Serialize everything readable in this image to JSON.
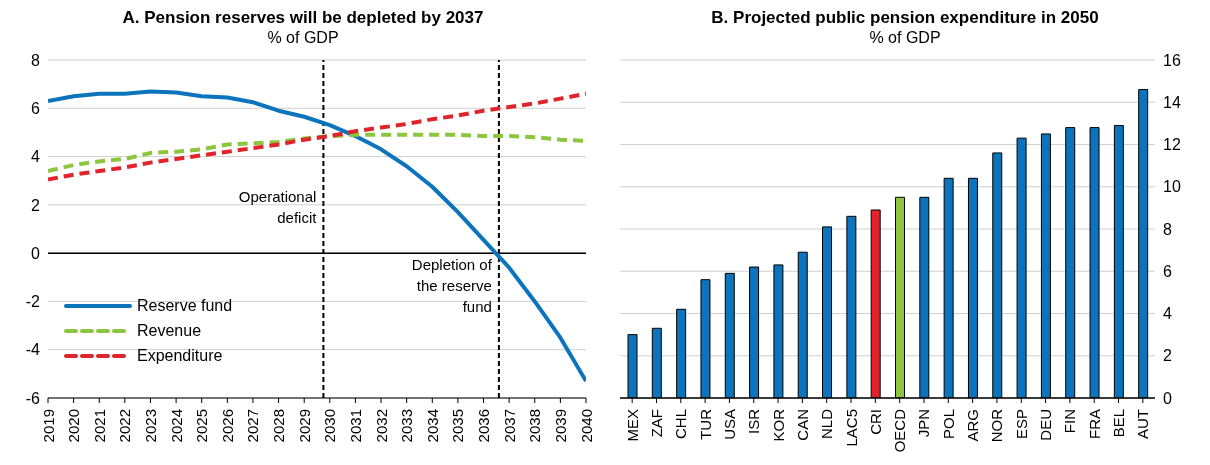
{
  "chart_data": [
    {
      "type": "line",
      "title": "A. Pension reserves will be depleted by 2037",
      "subtitle": "% of GDP",
      "x": [
        2019,
        2020,
        2021,
        2022,
        2023,
        2024,
        2025,
        2026,
        2027,
        2028,
        2029,
        2030,
        2031,
        2032,
        2033,
        2034,
        2035,
        2036,
        2037,
        2038,
        2039,
        2040
      ],
      "series": [
        {
          "name": "Reserve fund",
          "color": "#0b74bd",
          "line_style": "solid",
          "values": [
            6.3,
            6.5,
            6.6,
            6.6,
            6.7,
            6.65,
            6.5,
            6.45,
            6.25,
            5.9,
            5.65,
            5.3,
            4.85,
            4.3,
            3.6,
            2.75,
            1.7,
            0.55,
            -0.6,
            -2.0,
            -3.5,
            -5.3
          ]
        },
        {
          "name": "Revenue",
          "color": "#8cc63f",
          "line_style": "dashed",
          "values": [
            3.4,
            3.65,
            3.8,
            3.9,
            4.15,
            4.2,
            4.3,
            4.5,
            4.55,
            4.6,
            4.75,
            4.85,
            4.9,
            4.9,
            4.9,
            4.9,
            4.9,
            4.85,
            4.85,
            4.8,
            4.7,
            4.65
          ]
        },
        {
          "name": "Expenditure",
          "color": "#e0242b",
          "line_style": "dashed",
          "values": [
            3.05,
            3.25,
            3.4,
            3.55,
            3.75,
            3.9,
            4.05,
            4.2,
            4.35,
            4.5,
            4.7,
            4.85,
            5.05,
            5.2,
            5.35,
            5.55,
            5.7,
            5.9,
            6.05,
            6.2,
            6.4,
            6.6
          ]
        }
      ],
      "xlim": [
        2019,
        2040
      ],
      "xticks": [
        2019,
        2020,
        2021,
        2022,
        2023,
        2024,
        2025,
        2026,
        2027,
        2028,
        2029,
        2030,
        2031,
        2032,
        2033,
        2034,
        2035,
        2036,
        2037,
        2038,
        2039,
        2040
      ],
      "ylim": [
        -6,
        8
      ],
      "yticks": [
        -6,
        -4,
        -2,
        0,
        2,
        4,
        6,
        8
      ],
      "ref_lines": [
        {
          "axis": "x",
          "value": 2029.75,
          "label": "Operational deficit",
          "color": "#000000",
          "line_style": "dashed"
        },
        {
          "axis": "x",
          "value": 2036.6,
          "label": "Depletion of the reserve fund",
          "color": "#000000",
          "line_style": "dashed"
        }
      ],
      "grid": "y",
      "legend": "bottom left",
      "marker": "none"
    },
    {
      "type": "bar",
      "title": "B. Projected public pension expenditure in 2050",
      "subtitle": "% of GDP",
      "categories": [
        "MEX",
        "ZAF",
        "CHL",
        "TUR",
        "USA",
        "ISR",
        "KOR",
        "CAN",
        "NLD",
        "LAC5",
        "CRI",
        "OECD",
        "JPN",
        "POL",
        "ARG",
        "NOR",
        "ESP",
        "DEU",
        "FIN",
        "FRA",
        "BEL",
        "AUT"
      ],
      "values": [
        3.0,
        3.3,
        4.2,
        5.6,
        5.9,
        6.2,
        6.3,
        6.9,
        8.1,
        8.6,
        8.9,
        9.5,
        9.5,
        10.4,
        10.4,
        11.6,
        12.3,
        12.5,
        12.8,
        12.8,
        12.9,
        14.6
      ],
      "colors": [
        "#0b74bd",
        "#0b74bd",
        "#0b74bd",
        "#0b74bd",
        "#0b74bd",
        "#0b74bd",
        "#0b74bd",
        "#0b74bd",
        "#0b74bd",
        "#0b74bd",
        "#e0242b",
        "#8cc63f",
        "#0b74bd",
        "#0b74bd",
        "#0b74bd",
        "#0b74bd",
        "#0b74bd",
        "#0b74bd",
        "#0b74bd",
        "#0b74bd",
        "#0b74bd",
        "#0b74bd"
      ],
      "ylim": [
        0,
        16
      ],
      "yticks": [
        0,
        2,
        4,
        6,
        8,
        10,
        12,
        14,
        16
      ],
      "grid": "y",
      "legend": false
    }
  ]
}
